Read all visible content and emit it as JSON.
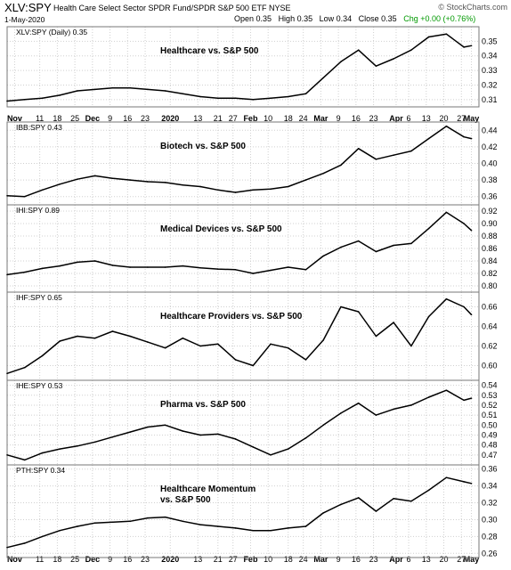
{
  "header": {
    "ticker": "XLV:SPY",
    "fund_name": "Health Care Select Sector SPDR Fund/SPDR S&P 500 ETF",
    "exchange": "NYSE",
    "date": "1-May-2020",
    "open": "Open 0.35",
    "high": "High 0.35",
    "low": "Low 0.34",
    "close": "Close 0.35",
    "chg": "Chg +0.00 (+0.76%)",
    "chg_color": "#009900",
    "brand": "© StockCharts.com"
  },
  "colors": {
    "line": "#000000",
    "grid": "#d0d0d0",
    "border": "#777777"
  },
  "chart_data": [
    {
      "type": "line",
      "label": "XLV:SPY (Daily) 0.35",
      "title": "Healthcare vs. S&P 500",
      "x": [
        "2019-10-29",
        "2019-11-05",
        "2019-11-12",
        "2019-11-19",
        "2019-11-26",
        "2019-12-03",
        "2019-12-10",
        "2019-12-17",
        "2019-12-24",
        "2019-12-31",
        "2020-01-07",
        "2020-01-14",
        "2020-01-21",
        "2020-01-28",
        "2020-02-04",
        "2020-02-11",
        "2020-02-18",
        "2020-02-25",
        "2020-03-03",
        "2020-03-10",
        "2020-03-17",
        "2020-03-24",
        "2020-03-31",
        "2020-04-07",
        "2020-04-14",
        "2020-04-21",
        "2020-04-28",
        "2020-05-01"
      ],
      "values": [
        0.309,
        0.31,
        0.311,
        0.313,
        0.316,
        0.317,
        0.318,
        0.318,
        0.317,
        0.316,
        0.314,
        0.312,
        0.311,
        0.311,
        0.31,
        0.311,
        0.312,
        0.314,
        0.325,
        0.336,
        0.344,
        0.333,
        0.338,
        0.344,
        0.353,
        0.355,
        0.346,
        0.347
      ],
      "ylim": [
        0.305,
        0.36
      ],
      "yticks": [
        0.31,
        0.32,
        0.33,
        0.34,
        0.35
      ],
      "ytick_labels": [
        "0.31",
        "0.32",
        "0.33",
        "0.34",
        "0.35"
      ]
    },
    {
      "type": "line",
      "label": "IBB:SPY 0.43",
      "title": "Biotech vs. S&P 500",
      "x": [
        "2019-10-29",
        "2019-11-05",
        "2019-11-12",
        "2019-11-19",
        "2019-11-26",
        "2019-12-03",
        "2019-12-10",
        "2019-12-17",
        "2019-12-24",
        "2019-12-31",
        "2020-01-07",
        "2020-01-14",
        "2020-01-21",
        "2020-01-28",
        "2020-02-04",
        "2020-02-11",
        "2020-02-18",
        "2020-02-25",
        "2020-03-03",
        "2020-03-10",
        "2020-03-17",
        "2020-03-24",
        "2020-03-31",
        "2020-04-07",
        "2020-04-14",
        "2020-04-21",
        "2020-04-28",
        "2020-05-01"
      ],
      "values": [
        0.361,
        0.36,
        0.368,
        0.375,
        0.381,
        0.385,
        0.382,
        0.38,
        0.378,
        0.377,
        0.374,
        0.372,
        0.368,
        0.365,
        0.368,
        0.369,
        0.372,
        0.38,
        0.388,
        0.398,
        0.418,
        0.405,
        0.41,
        0.415,
        0.43,
        0.445,
        0.432,
        0.43
      ],
      "ylim": [
        0.35,
        0.45
      ],
      "yticks": [
        0.36,
        0.38,
        0.4,
        0.42,
        0.44
      ],
      "ytick_labels": [
        "0.36",
        "0.38",
        "0.40",
        "0.42",
        "0.44"
      ]
    },
    {
      "type": "line",
      "label": "IHI:SPY 0.89",
      "title": "Medical Devices vs. S&P 500",
      "x": [
        "2019-10-29",
        "2019-11-05",
        "2019-11-12",
        "2019-11-19",
        "2019-11-26",
        "2019-12-03",
        "2019-12-10",
        "2019-12-17",
        "2019-12-24",
        "2019-12-31",
        "2020-01-07",
        "2020-01-14",
        "2020-01-21",
        "2020-01-28",
        "2020-02-04",
        "2020-02-11",
        "2020-02-18",
        "2020-02-25",
        "2020-03-03",
        "2020-03-10",
        "2020-03-17",
        "2020-03-24",
        "2020-03-31",
        "2020-04-07",
        "2020-04-14",
        "2020-04-21",
        "2020-04-28",
        "2020-05-01"
      ],
      "values": [
        0.818,
        0.822,
        0.828,
        0.832,
        0.838,
        0.84,
        0.833,
        0.83,
        0.83,
        0.83,
        0.832,
        0.829,
        0.827,
        0.826,
        0.82,
        0.825,
        0.83,
        0.826,
        0.848,
        0.862,
        0.872,
        0.855,
        0.865,
        0.868,
        0.892,
        0.918,
        0.9,
        0.889
      ],
      "ylim": [
        0.79,
        0.93
      ],
      "yticks": [
        0.8,
        0.82,
        0.84,
        0.86,
        0.88,
        0.9,
        0.92
      ],
      "ytick_labels": [
        "0.80",
        "0.82",
        "0.84",
        "0.86",
        "0.88",
        "0.90",
        "0.92"
      ]
    },
    {
      "type": "line",
      "label": "IHF:SPY 0.65",
      "title": "Healthcare Providers vs. S&P 500",
      "x": [
        "2019-10-29",
        "2019-11-05",
        "2019-11-12",
        "2019-11-19",
        "2019-11-26",
        "2019-12-03",
        "2019-12-10",
        "2019-12-17",
        "2019-12-24",
        "2019-12-31",
        "2020-01-07",
        "2020-01-14",
        "2020-01-21",
        "2020-01-28",
        "2020-02-04",
        "2020-02-11",
        "2020-02-18",
        "2020-02-25",
        "2020-03-03",
        "2020-03-10",
        "2020-03-17",
        "2020-03-24",
        "2020-03-31",
        "2020-04-07",
        "2020-04-14",
        "2020-04-21",
        "2020-04-28",
        "2020-05-01"
      ],
      "values": [
        0.592,
        0.598,
        0.61,
        0.625,
        0.63,
        0.628,
        0.635,
        0.63,
        0.624,
        0.618,
        0.628,
        0.62,
        0.622,
        0.606,
        0.6,
        0.622,
        0.618,
        0.606,
        0.626,
        0.66,
        0.655,
        0.63,
        0.644,
        0.62,
        0.65,
        0.668,
        0.66,
        0.652
      ],
      "ylim": [
        0.585,
        0.675
      ],
      "yticks": [
        0.6,
        0.62,
        0.64,
        0.66
      ],
      "ytick_labels": [
        "0.60",
        "0.62",
        "0.64",
        "0.66"
      ]
    },
    {
      "type": "line",
      "label": "IHE:SPY 0.53",
      "title": "Pharma vs. S&P 500",
      "x": [
        "2019-10-29",
        "2019-11-05",
        "2019-11-12",
        "2019-11-19",
        "2019-11-26",
        "2019-12-03",
        "2019-12-10",
        "2019-12-17",
        "2019-12-24",
        "2019-12-31",
        "2020-01-07",
        "2020-01-14",
        "2020-01-21",
        "2020-01-28",
        "2020-02-04",
        "2020-02-11",
        "2020-02-18",
        "2020-02-25",
        "2020-03-03",
        "2020-03-10",
        "2020-03-17",
        "2020-03-24",
        "2020-03-31",
        "2020-04-07",
        "2020-04-14",
        "2020-04-21",
        "2020-04-28",
        "2020-05-01"
      ],
      "values": [
        0.47,
        0.465,
        0.472,
        0.476,
        0.479,
        0.483,
        0.488,
        0.493,
        0.498,
        0.5,
        0.494,
        0.49,
        0.491,
        0.486,
        0.478,
        0.47,
        0.476,
        0.487,
        0.5,
        0.512,
        0.522,
        0.51,
        0.516,
        0.52,
        0.528,
        0.535,
        0.525,
        0.527
      ],
      "ylim": [
        0.46,
        0.545
      ],
      "yticks": [
        0.47,
        0.48,
        0.49,
        0.5,
        0.51,
        0.52,
        0.53,
        0.54
      ],
      "ytick_labels": [
        "0.47",
        "0.48",
        "0.49",
        "0.50",
        "0.51",
        "0.52",
        "0.53",
        "0.54"
      ]
    },
    {
      "type": "line",
      "label": "PTH:SPY 0.34",
      "title": "Healthcare Momentum\nvs. S&P 500",
      "x": [
        "2019-10-29",
        "2019-11-05",
        "2019-11-12",
        "2019-11-19",
        "2019-11-26",
        "2019-12-03",
        "2019-12-10",
        "2019-12-17",
        "2019-12-24",
        "2019-12-31",
        "2020-01-07",
        "2020-01-14",
        "2020-01-21",
        "2020-01-28",
        "2020-02-04",
        "2020-02-11",
        "2020-02-18",
        "2020-02-25",
        "2020-03-03",
        "2020-03-10",
        "2020-03-17",
        "2020-03-24",
        "2020-03-31",
        "2020-04-07",
        "2020-04-14",
        "2020-04-21",
        "2020-04-28",
        "2020-05-01"
      ],
      "values": [
        0.267,
        0.272,
        0.28,
        0.287,
        0.292,
        0.296,
        0.297,
        0.298,
        0.302,
        0.303,
        0.298,
        0.294,
        0.292,
        0.29,
        0.287,
        0.287,
        0.29,
        0.292,
        0.308,
        0.318,
        0.326,
        0.31,
        0.325,
        0.322,
        0.335,
        0.35,
        0.345,
        0.343
      ],
      "ylim": [
        0.255,
        0.365
      ],
      "yticks": [
        0.26,
        0.28,
        0.3,
        0.32,
        0.34,
        0.36
      ],
      "ytick_labels": [
        "0.26",
        "0.28",
        "0.30",
        "0.32",
        "0.34",
        "0.36"
      ]
    }
  ],
  "x_axis": {
    "start": "2019-10-29",
    "end": "2020-05-04",
    "ticks": [
      {
        "date": "2019-11-01",
        "label": "Nov",
        "bold": true
      },
      {
        "date": "2019-11-11",
        "label": "11",
        "bold": false
      },
      {
        "date": "2019-11-18",
        "label": "18",
        "bold": false
      },
      {
        "date": "2019-11-25",
        "label": "25",
        "bold": false
      },
      {
        "date": "2019-12-02",
        "label": "Dec",
        "bold": true
      },
      {
        "date": "2019-12-09",
        "label": "9",
        "bold": false
      },
      {
        "date": "2019-12-16",
        "label": "16",
        "bold": false
      },
      {
        "date": "2019-12-23",
        "label": "23",
        "bold": false
      },
      {
        "date": "2020-01-02",
        "label": "2020",
        "bold": true
      },
      {
        "date": "2020-01-13",
        "label": "13",
        "bold": false
      },
      {
        "date": "2020-01-21",
        "label": "21",
        "bold": false
      },
      {
        "date": "2020-01-27",
        "label": "27",
        "bold": false
      },
      {
        "date": "2020-02-03",
        "label": "Feb",
        "bold": true
      },
      {
        "date": "2020-02-10",
        "label": "10",
        "bold": false
      },
      {
        "date": "2020-02-18",
        "label": "18",
        "bold": false
      },
      {
        "date": "2020-02-24",
        "label": "24",
        "bold": false
      },
      {
        "date": "2020-03-02",
        "label": "Mar",
        "bold": true
      },
      {
        "date": "2020-03-09",
        "label": "9",
        "bold": false
      },
      {
        "date": "2020-03-16",
        "label": "16",
        "bold": false
      },
      {
        "date": "2020-03-23",
        "label": "23",
        "bold": false
      },
      {
        "date": "2020-04-01",
        "label": "Apr",
        "bold": true
      },
      {
        "date": "2020-04-06",
        "label": "6",
        "bold": false
      },
      {
        "date": "2020-04-13",
        "label": "13",
        "bold": false
      },
      {
        "date": "2020-04-20",
        "label": "20",
        "bold": false
      },
      {
        "date": "2020-04-27",
        "label": "27",
        "bold": false
      },
      {
        "date": "2020-05-01",
        "label": "May",
        "bold": true
      }
    ]
  }
}
